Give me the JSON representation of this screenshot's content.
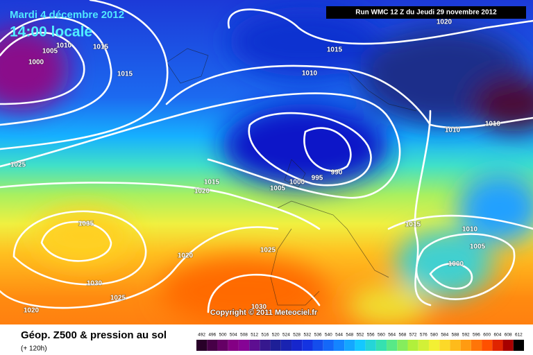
{
  "header": {
    "date": "Mardi 4 décembre 2012",
    "time": "14:00 locale",
    "run": "Run WMC 12 Z du Jeudi 29 novembre 2012"
  },
  "isobar_labels": [
    "1020",
    "1010",
    "1015",
    "1005",
    "1000",
    "1015",
    "1015",
    "1010",
    "1010",
    "1010",
    "1025",
    "1015",
    "1020",
    "1005",
    "1000",
    "995",
    "990",
    "1035",
    "1020",
    "1025",
    "1030",
    "1025",
    "1020",
    "1030",
    "1015",
    "1010",
    "1005",
    "1000"
  ],
  "copyright": "Copyright © 2011 Meteociel.fr",
  "footer": {
    "title": "Géop. Z500 & pression au sol",
    "range": "(+ 120h)"
  },
  "legend": [
    492,
    496,
    500,
    504,
    508,
    512,
    516,
    520,
    524,
    528,
    532,
    536,
    540,
    544,
    548,
    552,
    556,
    560,
    564,
    568,
    572,
    576,
    580,
    584,
    588,
    592,
    596,
    600,
    604,
    608,
    612
  ]
}
